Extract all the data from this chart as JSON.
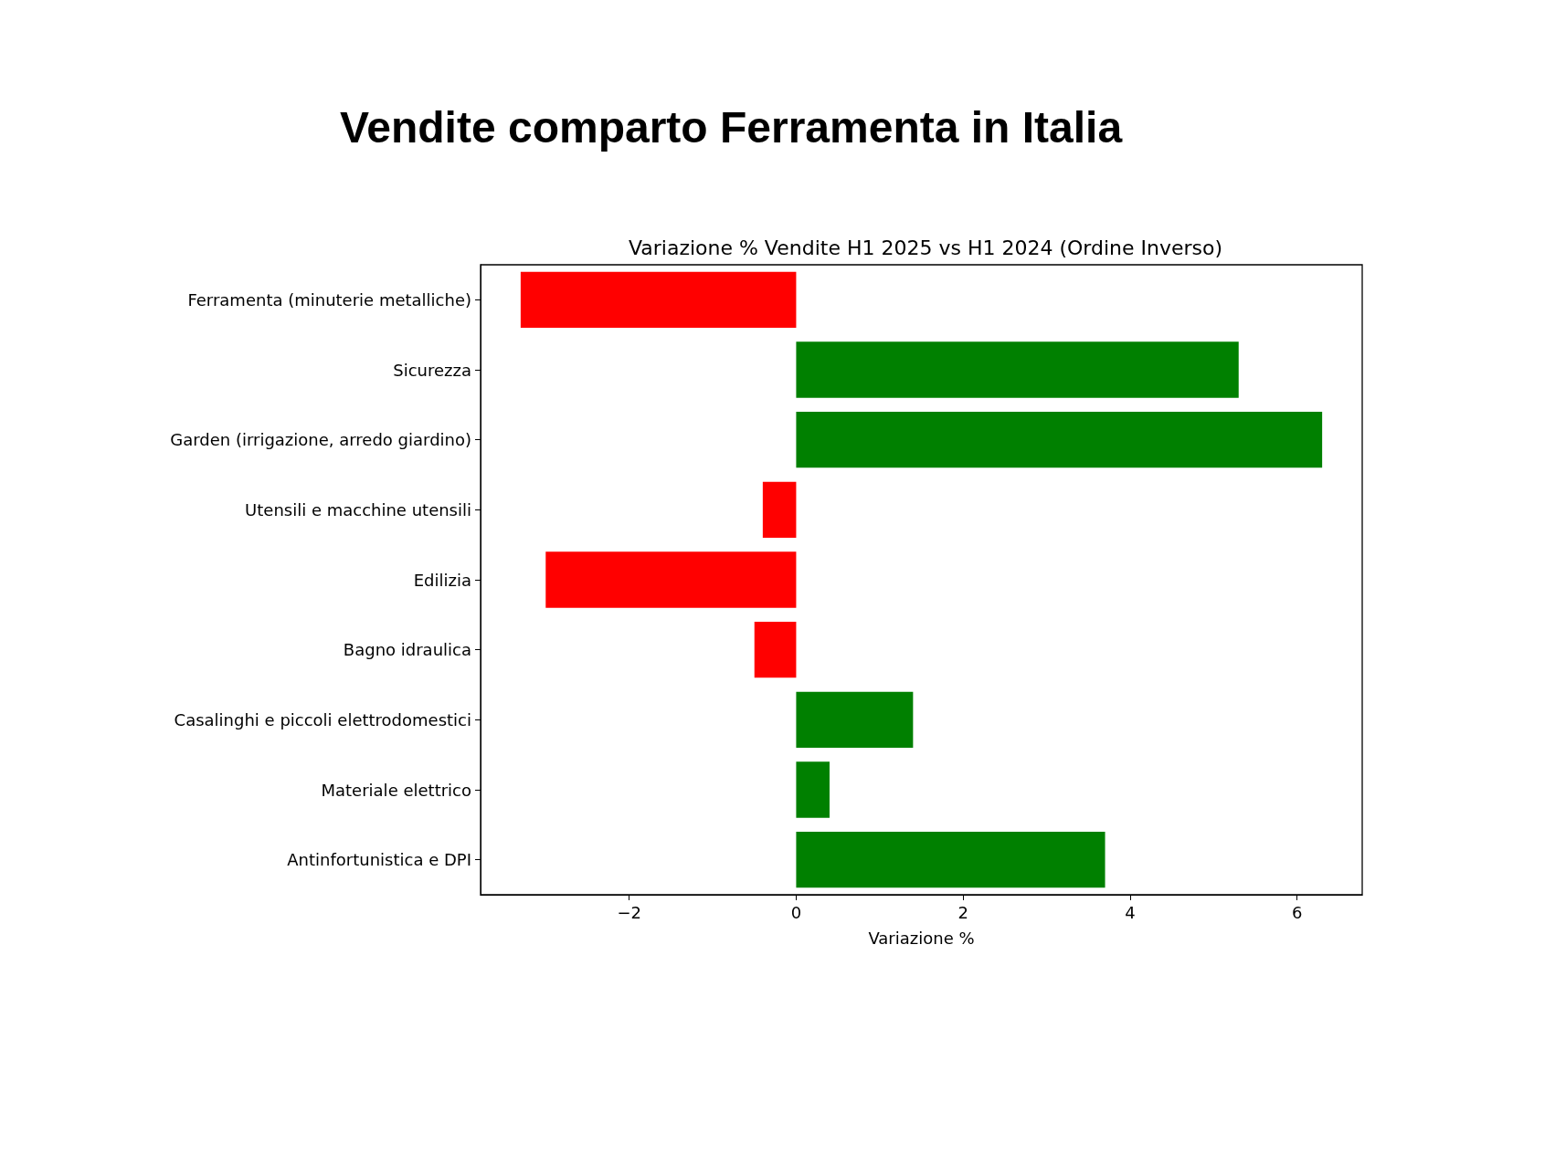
{
  "chart_data": {
    "type": "bar",
    "orientation": "horizontal",
    "title": "Vendite comparto Ferramenta in Italia",
    "subtitle": "Variazione % Vendite H1 2025 vs H1 2024 (Ordine Inverso)",
    "xlabel": "Variazione %",
    "categories": [
      "Ferramenta (minuterie metalliche)",
      "Sicurezza",
      "Garden (irrigazione, arredo giardino)",
      "Utensili e macchine utensili",
      "Edilizia",
      "Bagno idraulica",
      "Casalinghi e piccoli elettrodomestici",
      "Materiale elettrico",
      "Antinfortunistica e DPI"
    ],
    "values": [
      -3.3,
      5.3,
      6.3,
      -0.4,
      -3.0,
      -0.5,
      1.4,
      0.4,
      3.7
    ],
    "colors": [
      "#ff0000",
      "#008000",
      "#008000",
      "#ff0000",
      "#ff0000",
      "#ff0000",
      "#008000",
      "#008000",
      "#008000"
    ],
    "xlim": [
      -3.78,
      6.78
    ],
    "xticks": [
      {
        "value": -2,
        "label": "−2"
      },
      0,
      2,
      4,
      6
    ]
  }
}
